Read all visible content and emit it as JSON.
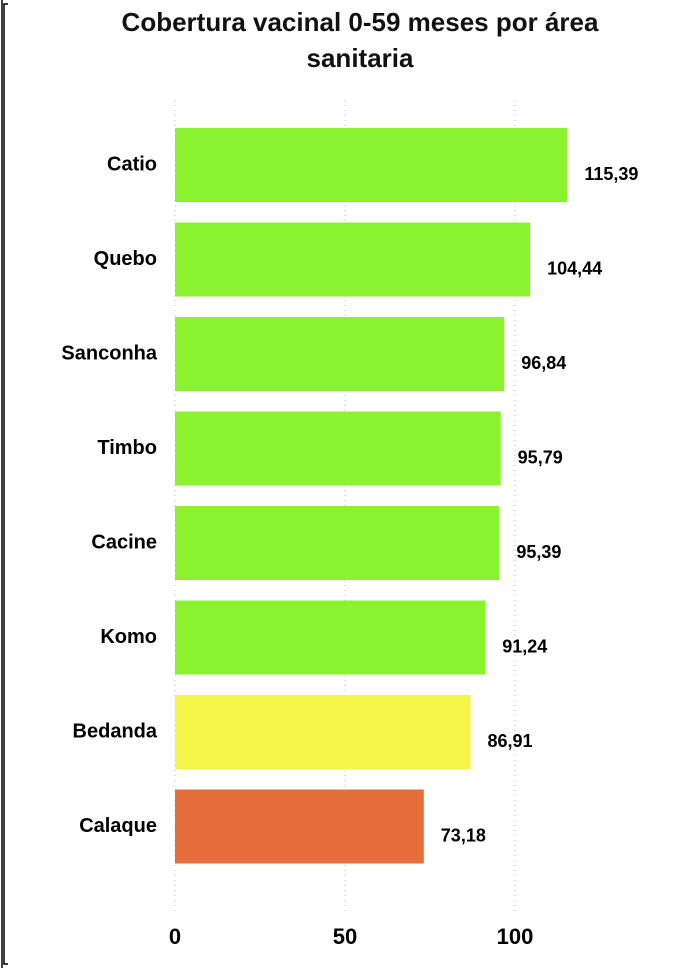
{
  "chart_data": {
    "type": "barh",
    "title": "Cobertura vacinal 0-59 meses por área sanitaria",
    "categories": [
      "Catio",
      "Quebo",
      "Sanconha",
      "Timbo",
      "Cacine",
      "Komo",
      "Bedanda",
      "Calaque"
    ],
    "values": [
      115.39,
      104.44,
      96.84,
      95.79,
      95.39,
      91.24,
      86.91,
      73.18
    ],
    "value_labels": [
      "115,39",
      "104,44",
      "96,84",
      "95,79",
      "95,39",
      "91,24",
      "86,91",
      "73,18"
    ],
    "colors": [
      "#8af22e",
      "#8af22e",
      "#8af22e",
      "#8af22e",
      "#8af22e",
      "#8af22e",
      "#f5f54a",
      "#e66e3a"
    ],
    "xlim": [
      0,
      140
    ],
    "xticks": [
      0,
      50,
      100
    ],
    "grid": true
  }
}
